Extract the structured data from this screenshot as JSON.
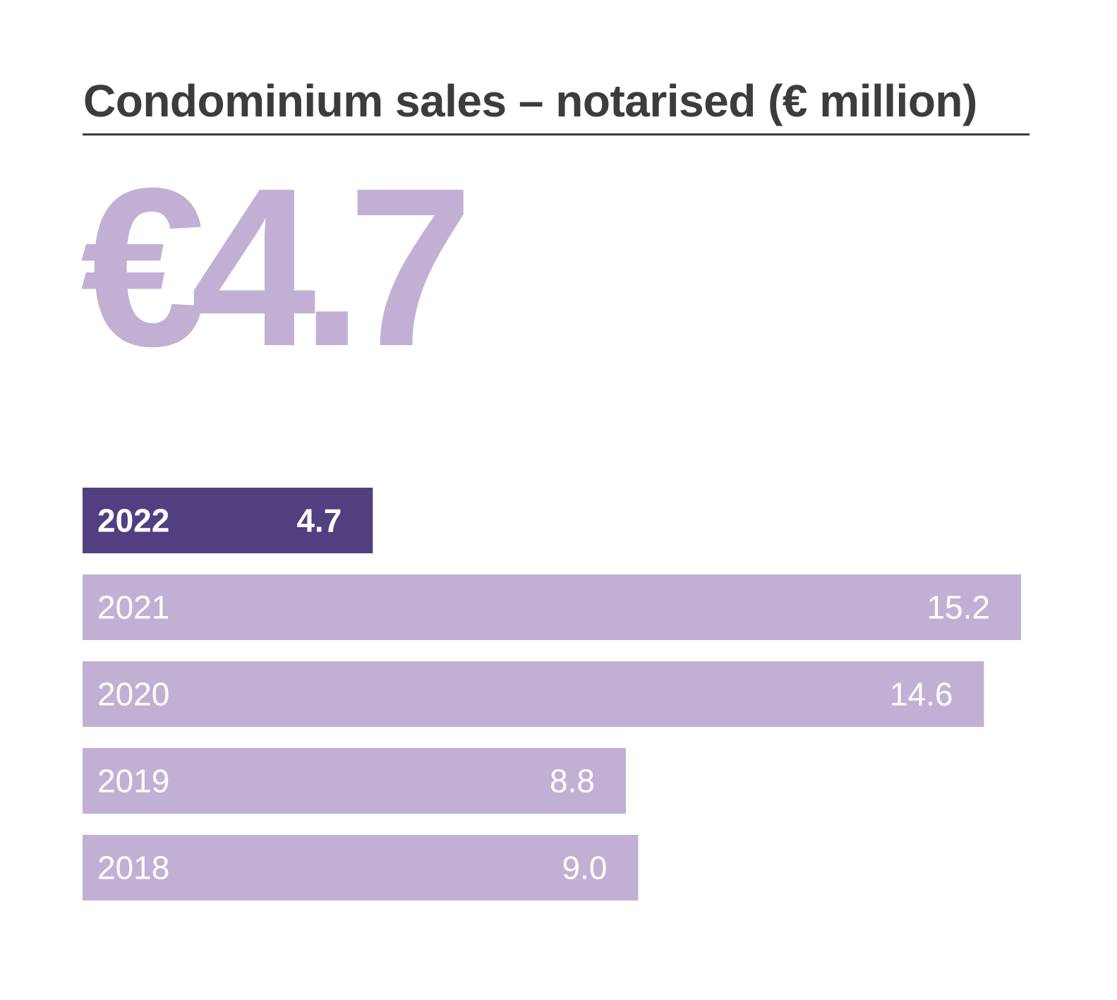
{
  "colors": {
    "title": "#3c3c3b",
    "headline": "#c2b0d4",
    "highlight_bar": "#513f80",
    "bar": "#c2b0d4",
    "label": "#ffffff"
  },
  "headline_value": "€4.7",
  "chart_data": {
    "type": "bar",
    "orientation": "horizontal",
    "title": "Condominium sales – notarised (€ million)",
    "xlabel": "",
    "ylabel": "",
    "categories": [
      "2022",
      "2021",
      "2020",
      "2019",
      "2018"
    ],
    "values": [
      4.7,
      15.2,
      14.6,
      8.8,
      9.0
    ],
    "value_labels": [
      "4.7",
      "15.2",
      "14.6",
      "8.8",
      "9.0"
    ],
    "highlight_index": 0,
    "xlim": [
      0,
      15.2
    ],
    "grid": false,
    "legend": "none"
  }
}
